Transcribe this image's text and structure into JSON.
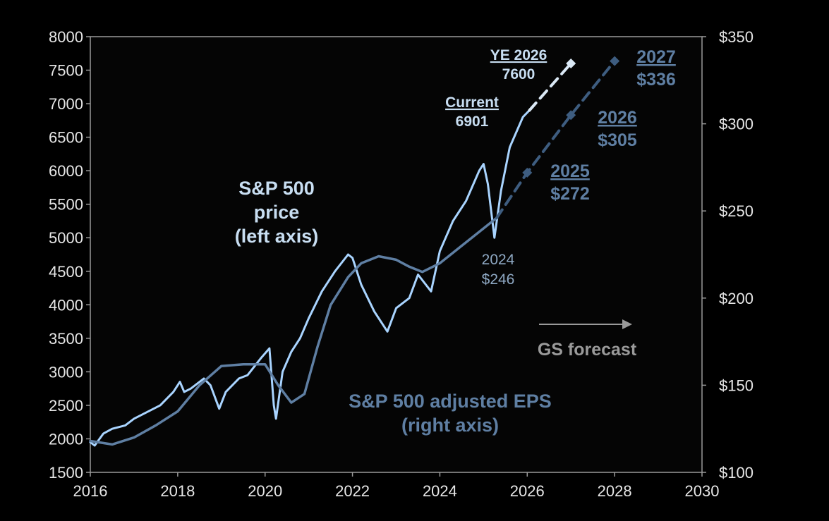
{
  "chart_data": {
    "type": "line",
    "title": "",
    "xlabel": "",
    "x_ticks": [
      "2016",
      "2018",
      "2020",
      "2022",
      "2024",
      "2026",
      "2028",
      "2030"
    ],
    "xlim": [
      2016,
      2030
    ],
    "y_left": {
      "label": "S&P 500 price (left axis)",
      "ylim": [
        1500,
        8000
      ],
      "ticks": [
        "1500",
        "2000",
        "2500",
        "3000",
        "3500",
        "4000",
        "4500",
        "5000",
        "5500",
        "6000",
        "6500",
        "7000",
        "7500",
        "8000"
      ]
    },
    "y_right": {
      "label": "S&P 500 adjusted EPS (right axis)",
      "ylim": [
        100,
        350
      ],
      "ticks": [
        "$100",
        "$150",
        "$200",
        "$250",
        "$300",
        "$350"
      ]
    },
    "series": [
      {
        "name": "S&P 500 price",
        "axis": "left",
        "color": "#a9d4ff",
        "x": [
          2016.0,
          2016.1,
          2016.3,
          2016.5,
          2016.8,
          2017.0,
          2017.3,
          2017.6,
          2017.9,
          2018.05,
          2018.15,
          2018.3,
          2018.6,
          2018.75,
          2018.95,
          2019.1,
          2019.4,
          2019.6,
          2019.9,
          2020.1,
          2020.2,
          2020.25,
          2020.4,
          2020.6,
          2020.8,
          2021.0,
          2021.3,
          2021.6,
          2021.9,
          2022.0,
          2022.2,
          2022.5,
          2022.7,
          2022.8,
          2023.0,
          2023.3,
          2023.5,
          2023.8,
          2024.0,
          2024.3,
          2024.6,
          2024.9,
          2025.0,
          2025.1,
          2025.25,
          2025.4,
          2025.6,
          2025.9,
          2026.05
        ],
        "values": [
          1950,
          1900,
          2080,
          2150,
          2200,
          2300,
          2400,
          2500,
          2700,
          2850,
          2700,
          2750,
          2900,
          2800,
          2450,
          2700,
          2900,
          2950,
          3200,
          3350,
          2500,
          2300,
          3000,
          3300,
          3500,
          3800,
          4200,
          4500,
          4750,
          4700,
          4300,
          3900,
          3700,
          3600,
          3950,
          4100,
          4450,
          4200,
          4800,
          5250,
          5550,
          6000,
          6100,
          5800,
          5000,
          5700,
          6350,
          6800,
          6901
        ]
      },
      {
        "name": "S&P 500 adjusted EPS",
        "axis": "right",
        "color": "#5f7fa3",
        "x": [
          2016.0,
          2016.5,
          2017.0,
          2017.5,
          2018.0,
          2018.5,
          2019.0,
          2019.5,
          2020.0,
          2020.3,
          2020.6,
          2020.9,
          2021.2,
          2021.5,
          2021.9,
          2022.2,
          2022.6,
          2023.0,
          2023.3,
          2023.6,
          2024.0,
          2024.5,
          2024.9,
          2025.3
        ],
        "values": [
          118,
          116,
          120,
          127,
          135,
          150,
          161,
          162,
          162,
          150,
          140,
          145,
          172,
          196,
          212,
          220,
          224,
          222,
          218,
          215,
          220,
          230,
          238,
          246
        ]
      },
      {
        "name": "S&P 500 price forecast",
        "axis": "left",
        "style": "dashed",
        "color": "#dbe9f6",
        "x": [
          2026.05,
          2027.0
        ],
        "values": [
          6901,
          7600
        ]
      },
      {
        "name": "EPS forecast",
        "axis": "right",
        "style": "dashed",
        "color": "#3e5d80",
        "x": [
          2025.3,
          2026.0,
          2027.0,
          2028.0
        ],
        "values": [
          246,
          272,
          305,
          336
        ]
      }
    ],
    "annotations": {
      "price_label": [
        "S&P 500",
        "price",
        "(left axis)"
      ],
      "eps_label": [
        "S&P 500 adjusted EPS",
        "(right axis)"
      ],
      "current_title": "Current",
      "current_value": "6901",
      "ye_title": "YE 2026",
      "ye_value": "7600",
      "eps_2024_year": "2024",
      "eps_2024_value": "$246",
      "eps_2025_year": "2025",
      "eps_2025_value": "$272",
      "eps_2026_year": "2026",
      "eps_2026_value": "$305",
      "eps_2027_year": "2027",
      "eps_2027_value": "$336",
      "forecast_label": "GS forecast"
    },
    "grid": false,
    "legend": "none"
  },
  "colors": {
    "background": "#000000",
    "plot_background": "#050505",
    "axis": "#9a9a9a",
    "tick_text": "#e6e6e6",
    "price": "#a9d4ff",
    "eps": "#5f7fa3",
    "price_forecast": "#dbe9f6",
    "eps_forecast": "#3e5d80",
    "label_light": "#c8def2",
    "label_muted": "#8fa9c4",
    "forecast_text": "#9a9a9a"
  }
}
